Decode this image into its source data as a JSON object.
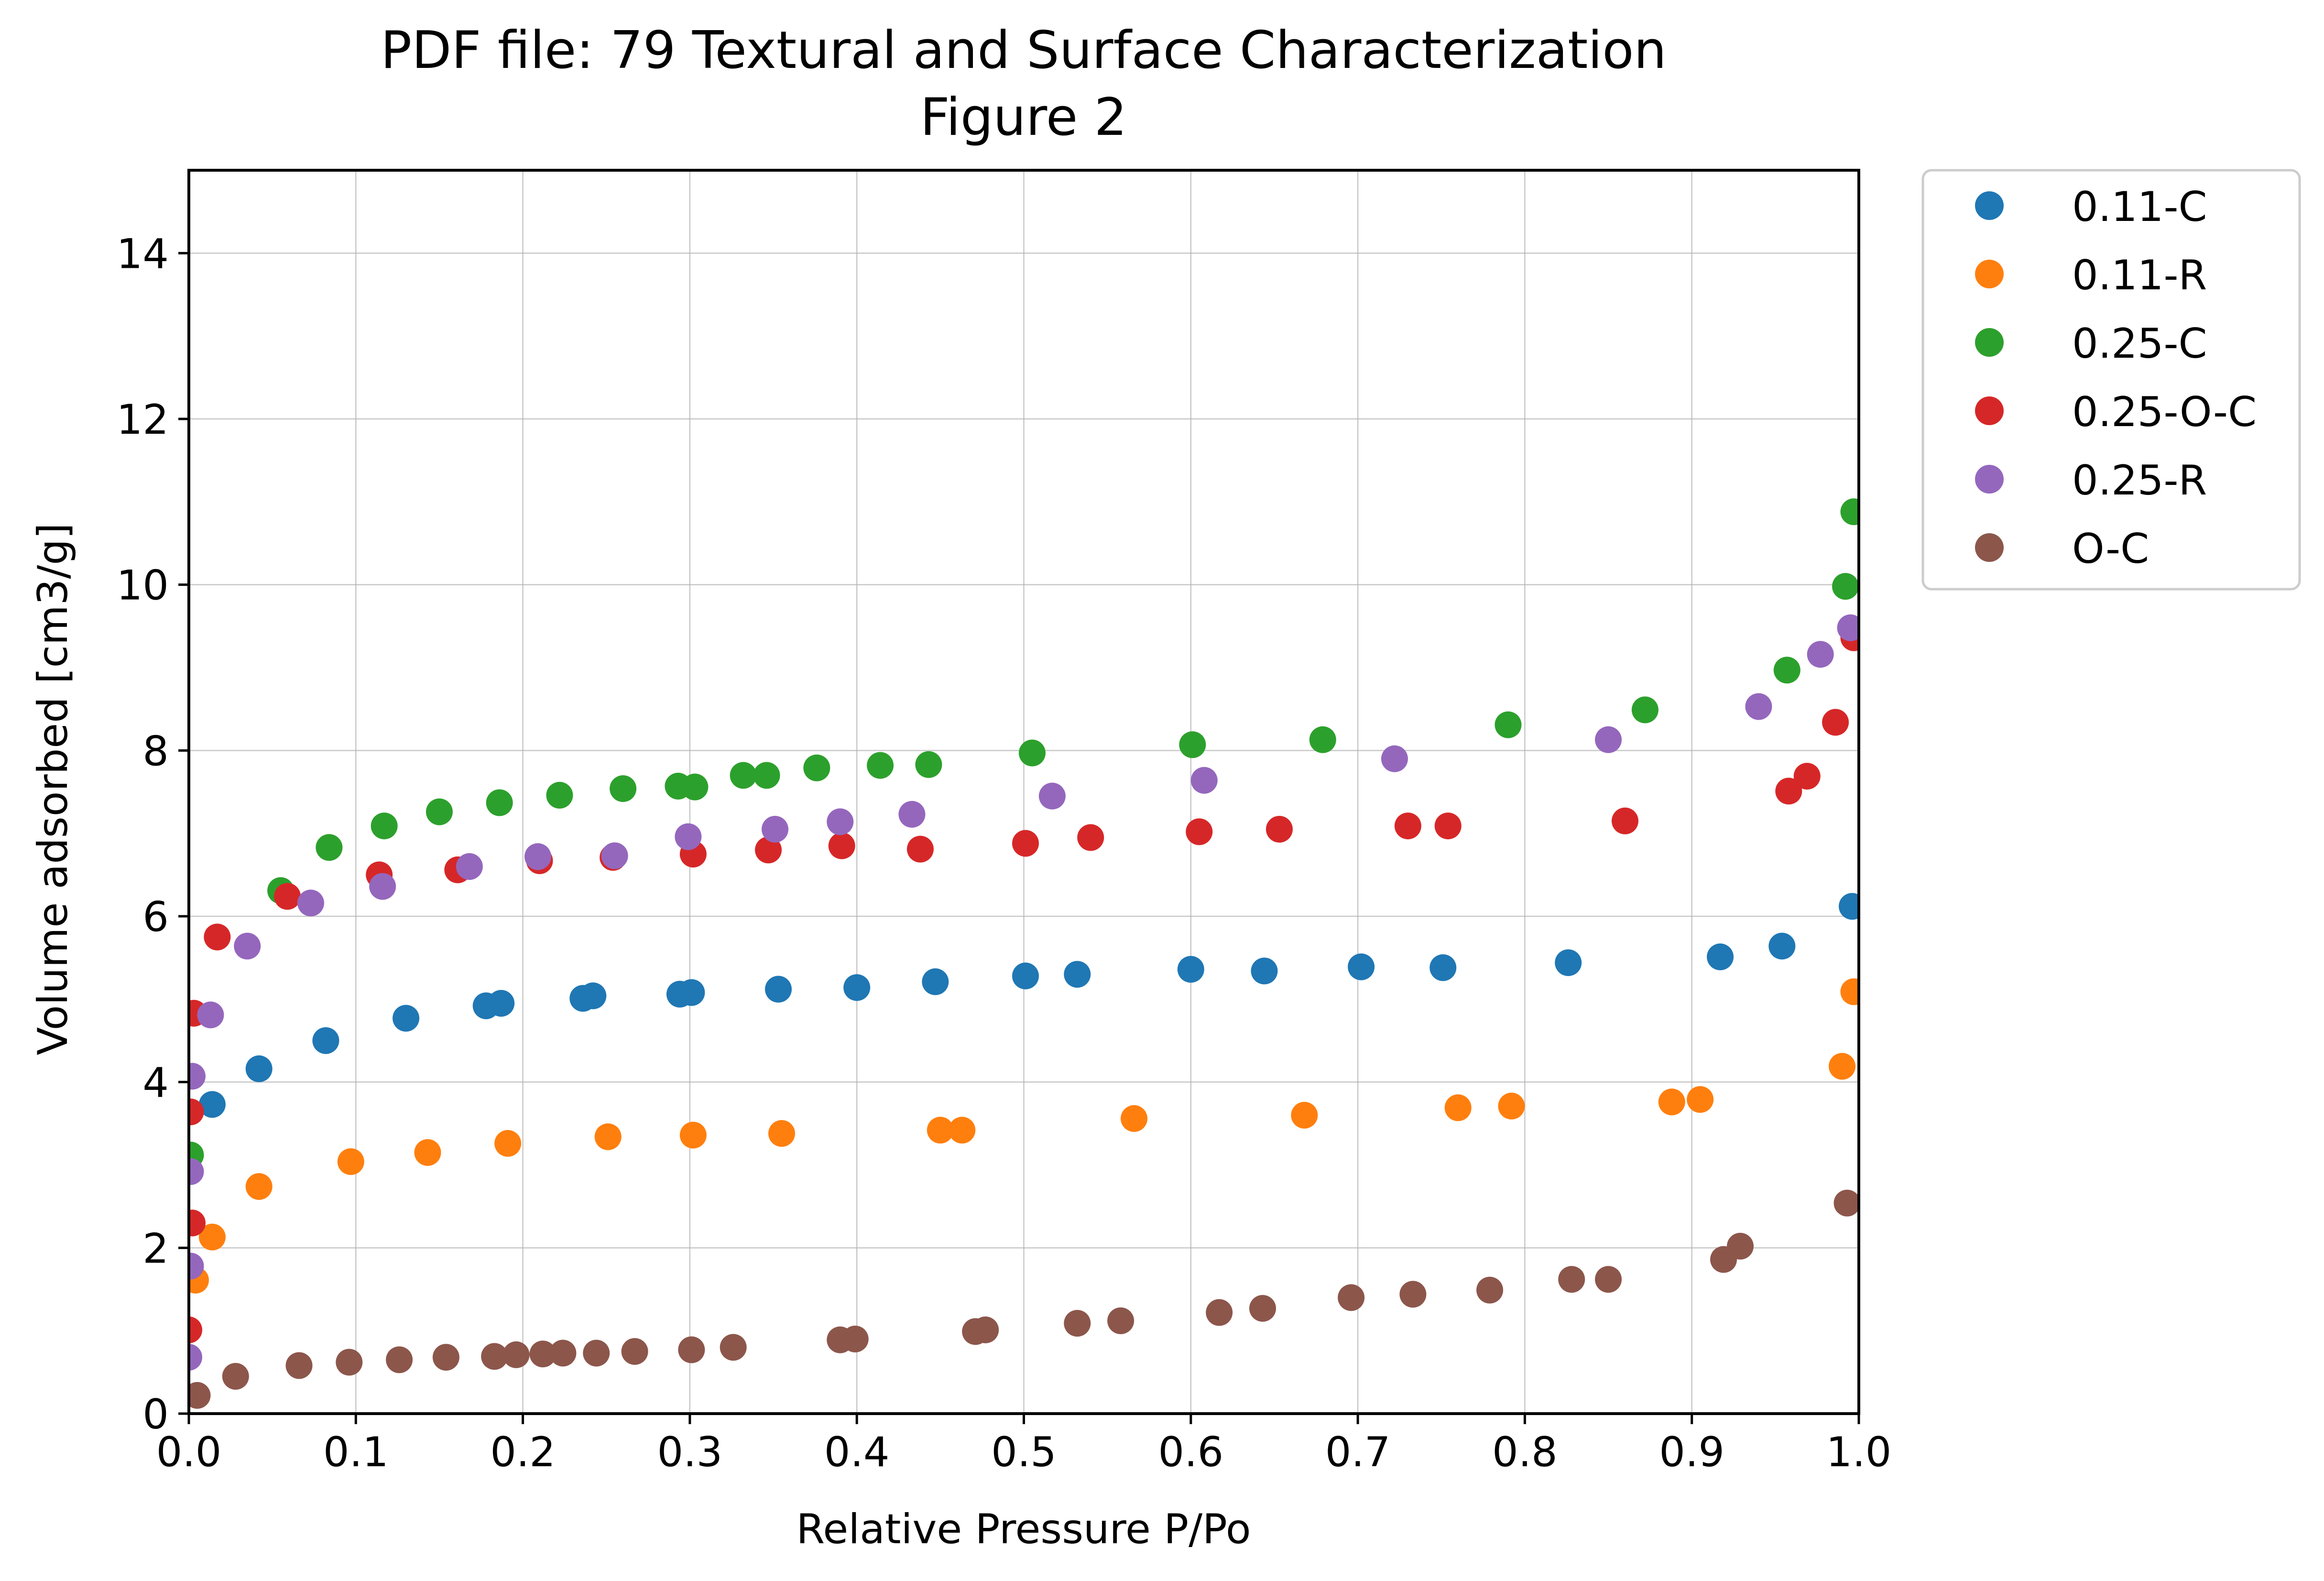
{
  "chart_data": {
    "type": "scatter",
    "title": "PDF file: 79 Textural and Surface Characterization",
    "subtitle": "Figure 2",
    "xlabel": "Relative Pressure P/Po",
    "ylabel": "Volume adsorbed [cm3/g]",
    "xlim": [
      0.0,
      1.0
    ],
    "ylim": [
      0,
      15
    ],
    "xticks": [
      "0.0",
      "0.1",
      "0.2",
      "0.3",
      "0.4",
      "0.5",
      "0.6",
      "0.7",
      "0.8",
      "0.9",
      "1.0"
    ],
    "yticks": [
      "0",
      "2",
      "4",
      "6",
      "8",
      "10",
      "12",
      "14"
    ],
    "grid": true,
    "legend_position": "outside-right-top",
    "series": [
      {
        "name": "0.11-C",
        "color": "#1f77b4",
        "x": [
          0.014,
          0.042,
          0.082,
          0.13,
          0.178,
          0.187,
          0.236,
          0.242,
          0.294,
          0.301,
          0.353,
          0.4,
          0.447,
          0.501,
          0.532,
          0.6,
          0.644,
          0.702,
          0.751,
          0.826,
          0.917,
          0.954,
          0.996
        ],
        "y": [
          3.73,
          4.16,
          4.5,
          4.77,
          4.92,
          4.95,
          5.01,
          5.04,
          5.06,
          5.08,
          5.12,
          5.14,
          5.21,
          5.28,
          5.3,
          5.36,
          5.34,
          5.39,
          5.38,
          5.44,
          5.51,
          5.64,
          6.12
        ]
      },
      {
        "name": "0.11-R",
        "color": "#ff7f0e",
        "x": [
          0.004,
          0.014,
          0.042,
          0.097,
          0.143,
          0.191,
          0.251,
          0.302,
          0.355,
          0.45,
          0.463,
          0.566,
          0.668,
          0.76,
          0.792,
          0.888,
          0.905,
          0.99,
          0.997
        ],
        "y": [
          1.61,
          2.13,
          2.74,
          3.04,
          3.15,
          3.26,
          3.34,
          3.36,
          3.38,
          3.42,
          3.42,
          3.56,
          3.6,
          3.69,
          3.71,
          3.76,
          3.79,
          4.19,
          5.09
        ]
      },
      {
        "name": "0.25-C",
        "color": "#2ca02c",
        "x": [
          0.001,
          0.055,
          0.084,
          0.117,
          0.15,
          0.186,
          0.222,
          0.26,
          0.293,
          0.303,
          0.332,
          0.346,
          0.376,
          0.414,
          0.443,
          0.505,
          0.601,
          0.679,
          0.79,
          0.872,
          0.957,
          0.992,
          0.997
        ],
        "y": [
          3.12,
          6.31,
          6.83,
          7.09,
          7.26,
          7.37,
          7.46,
          7.54,
          7.57,
          7.56,
          7.7,
          7.7,
          7.79,
          7.82,
          7.83,
          7.97,
          8.07,
          8.13,
          8.31,
          8.49,
          8.97,
          9.98,
          10.88
        ]
      },
      {
        "name": "0.25-O-C",
        "color": "#d62728",
        "x": [
          0.0,
          0.001,
          0.002,
          0.003,
          0.017,
          0.059,
          0.114,
          0.161,
          0.21,
          0.254,
          0.302,
          0.347,
          0.391,
          0.438,
          0.501,
          0.54,
          0.605,
          0.653,
          0.73,
          0.754,
          0.86,
          0.958,
          0.969,
          0.986,
          0.997
        ],
        "y": [
          1.01,
          3.64,
          2.3,
          4.83,
          5.75,
          6.24,
          6.5,
          6.56,
          6.67,
          6.71,
          6.75,
          6.8,
          6.85,
          6.81,
          6.88,
          6.95,
          7.02,
          7.05,
          7.09,
          7.09,
          7.15,
          7.51,
          7.69,
          8.34,
          9.36
        ]
      },
      {
        "name": "0.25-R",
        "color": "#9467bd",
        "x": [
          0.0,
          0.001,
          0.001,
          0.002,
          0.013,
          0.035,
          0.073,
          0.116,
          0.168,
          0.209,
          0.255,
          0.299,
          0.351,
          0.39,
          0.433,
          0.517,
          0.608,
          0.722,
          0.85,
          0.94,
          0.977,
          0.995
        ],
        "y": [
          0.68,
          1.78,
          2.92,
          4.07,
          4.81,
          5.64,
          6.16,
          6.36,
          6.6,
          6.72,
          6.73,
          6.96,
          7.05,
          7.14,
          7.23,
          7.45,
          7.64,
          7.9,
          8.13,
          8.53,
          9.16,
          9.48
        ]
      },
      {
        "name": "O-C",
        "color": "#8c564b",
        "x": [
          0.005,
          0.028,
          0.066,
          0.096,
          0.126,
          0.154,
          0.183,
          0.196,
          0.212,
          0.224,
          0.244,
          0.267,
          0.301,
          0.326,
          0.39,
          0.399,
          0.471,
          0.477,
          0.532,
          0.558,
          0.617,
          0.643,
          0.696,
          0.733,
          0.779,
          0.828,
          0.85,
          0.919,
          0.929,
          0.993
        ],
        "y": [
          0.22,
          0.45,
          0.58,
          0.62,
          0.65,
          0.68,
          0.69,
          0.71,
          0.72,
          0.73,
          0.73,
          0.75,
          0.77,
          0.8,
          0.89,
          0.9,
          0.99,
          1.01,
          1.09,
          1.12,
          1.22,
          1.27,
          1.4,
          1.44,
          1.49,
          1.62,
          1.62,
          1.86,
          2.02,
          2.54
        ]
      }
    ]
  }
}
